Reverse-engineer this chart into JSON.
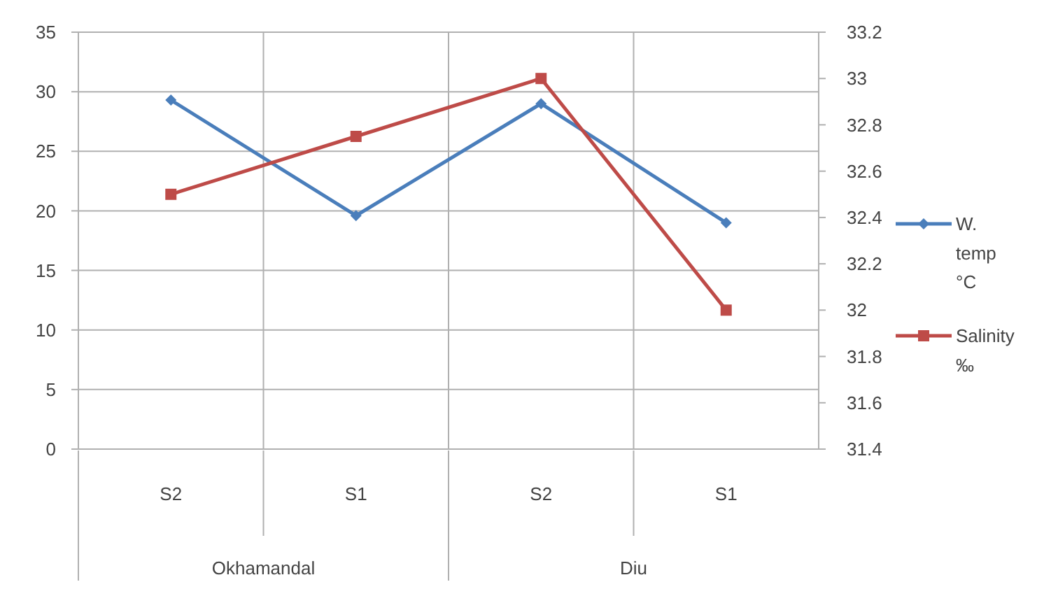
{
  "chart_data": {
    "type": "line",
    "categories": [
      "S2",
      "S1",
      "S2",
      "S1"
    ],
    "series": [
      {
        "name": "W. temp °C",
        "color": "#4a7ebb",
        "values": [
          29.3,
          19.6,
          29,
          19
        ]
      },
      {
        "name": "Salinity ‰",
        "color": "#be4b48",
        "values": [
          32.5,
          32.75,
          33,
          32
        ],
        "axis": "y2",
        "marker": "square"
      }
    ],
    "marker": "diamond",
    "ylim": [
      0,
      35
    ],
    "yticks": [
      0,
      5,
      10,
      15,
      20,
      25,
      30,
      35
    ],
    "y2lim": [
      31.4,
      33.2
    ],
    "y2ticks": [
      31.4,
      31.6,
      31.8,
      32,
      32.2,
      32.4,
      32.6,
      32.8,
      33,
      33.2
    ],
    "annotations": [
      "Okhamandal",
      "Diu"
    ],
    "grid": true,
    "legend": "right"
  }
}
